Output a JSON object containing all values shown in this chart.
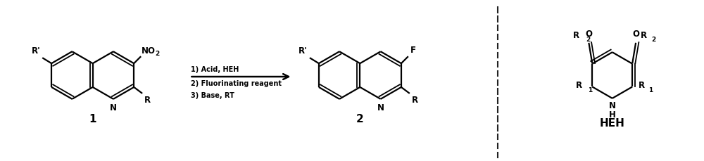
{
  "background_color": "#ffffff",
  "fig_width": 10.0,
  "fig_height": 2.29,
  "dpi": 100,
  "reaction_conditions": [
    "1) Acid, HEH",
    "2) Fluorinating reagent",
    "3) Base, RT"
  ],
  "compound1_label": "1",
  "compound2_label": "2",
  "heh_label": "HEH",
  "text_color": "#000000",
  "line_color": "#000000"
}
